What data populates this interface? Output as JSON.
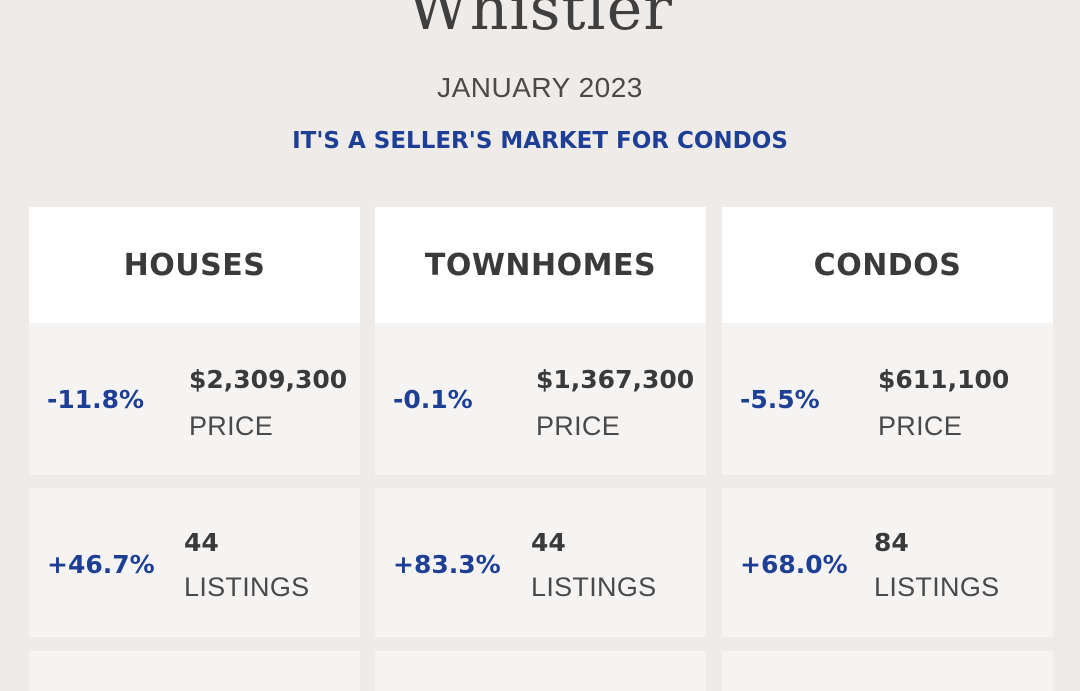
{
  "header": {
    "title": "Whistler",
    "date": "JANUARY 2023",
    "tagline": "IT'S A SELLER'S MARKET FOR CONDOS"
  },
  "columns": [
    {
      "name": "HOUSES",
      "price": {
        "change": "-11.8%",
        "value": "$2,309,300",
        "label": "PRICE"
      },
      "listings": {
        "change": "+46.7%",
        "value": "44",
        "label": "LISTINGS"
      }
    },
    {
      "name": "TOWNHOMES",
      "price": {
        "change": "-0.1%",
        "value": "$1,367,300",
        "label": "PRICE"
      },
      "listings": {
        "change": "+83.3%",
        "value": "44",
        "label": "LISTINGS"
      }
    },
    {
      "name": "CONDOS",
      "price": {
        "change": "-5.5%",
        "value": "$611,100",
        "label": "PRICE"
      },
      "listings": {
        "change": "+68.0%",
        "value": "84",
        "label": "LISTINGS"
      }
    }
  ],
  "colors": {
    "background": "#efebe9",
    "accent": "#1e3f96",
    "card": "#f6f4f3",
    "header_card": "#ffffff"
  }
}
